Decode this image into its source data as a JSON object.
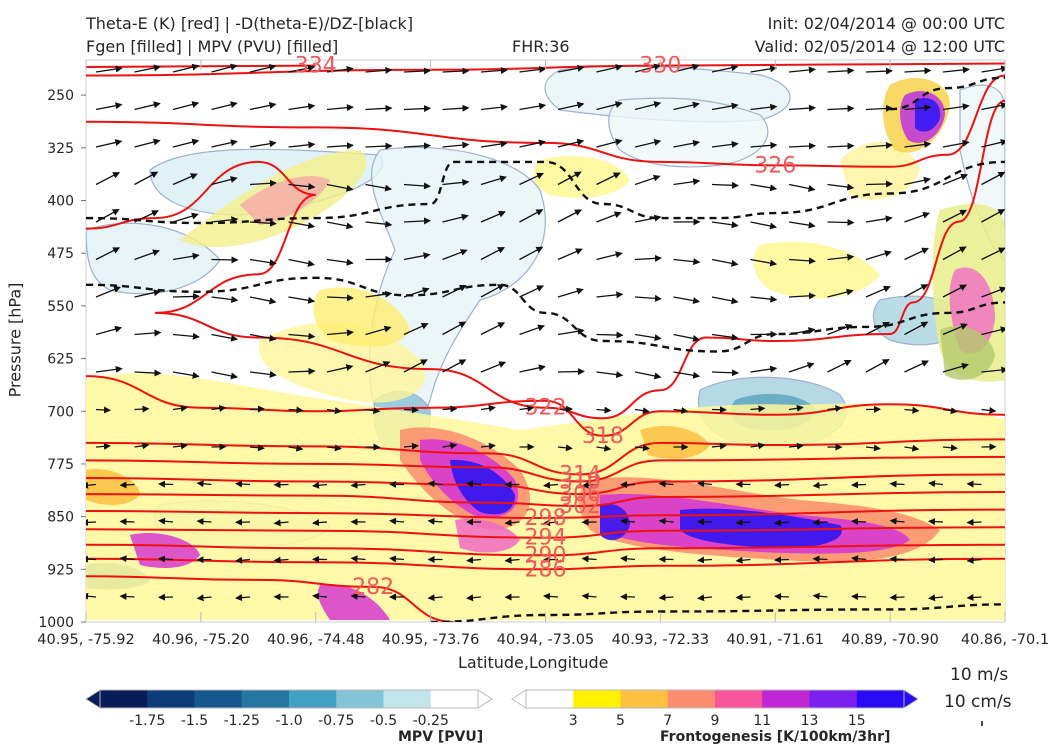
{
  "header": {
    "title_line1": "Theta-E (K) [red] | -D(theta-E)/DZ-[black]",
    "title_line2": "Fgen [filled] | MPV (PVU) [filled]",
    "fhr": "FHR:36",
    "init": "Init: 02/04/2014 @ 00:00 UTC",
    "valid": "Valid: 02/05/2014 @ 12:00 UTC"
  },
  "chart_data": {
    "type": "cross-section",
    "xlabel": "Latitude,Longitude",
    "ylabel": "Pressure [hPa]",
    "x_ticks": [
      "40.95, -75.92",
      "40.96, -75.20",
      "40.96, -74.48",
      "40.95, -73.76",
      "40.94, -73.05",
      "40.93, -72.33",
      "40.91, -71.61",
      "40.89, -70.90",
      "40.86, -70.1"
    ],
    "y_ticks": [
      250,
      325,
      400,
      475,
      550,
      625,
      700,
      775,
      850,
      925,
      1000
    ],
    "ylim": [
      1000,
      200
    ],
    "theta_e_contours": [
      {
        "value": 334,
        "label": "334",
        "points": [
          [
            0,
            210
          ],
          [
            2,
            208
          ]
        ]
      },
      {
        "value": 330,
        "label": "330",
        "points": [
          [
            0,
            222
          ],
          [
            3,
            214
          ],
          [
            5,
            208
          ],
          [
            8,
            205
          ]
        ]
      },
      {
        "value": 326,
        "label": "326",
        "points": [
          [
            0,
            288
          ],
          [
            2,
            296
          ],
          [
            4,
            318
          ],
          [
            5,
            345
          ],
          [
            6,
            350
          ],
          [
            7,
            352
          ],
          [
            7.5,
            335
          ],
          [
            8,
            222
          ]
        ]
      },
      {
        "value": 322,
        "label": "322",
        "points": [
          [
            0,
            440
          ],
          [
            0.6,
            425
          ],
          [
            1.5,
            345
          ],
          [
            2,
            392
          ],
          [
            1.5,
            505
          ],
          [
            0.6,
            560
          ],
          [
            1.5,
            595
          ],
          [
            3,
            640
          ],
          [
            4,
            695
          ],
          [
            4.5,
            710
          ],
          [
            5,
            670
          ],
          [
            5.4,
            595
          ],
          [
            6,
            600
          ],
          [
            7,
            590
          ],
          [
            7.2,
            545
          ],
          [
            7.6,
            430
          ],
          [
            8,
            258
          ]
        ]
      },
      {
        "value": 318,
        "label": "318",
        "points": [
          [
            0,
            650
          ],
          [
            1,
            695
          ],
          [
            2,
            700
          ],
          [
            3,
            695
          ],
          [
            4,
            685
          ],
          [
            4.5,
            735
          ],
          [
            5,
            700
          ],
          [
            6,
            705
          ],
          [
            7,
            690
          ],
          [
            8,
            705
          ]
        ]
      },
      {
        "value": 314,
        "label": "314",
        "points": [
          [
            0,
            745
          ],
          [
            2,
            750
          ],
          [
            3.5,
            760
          ],
          [
            4.3,
            790
          ],
          [
            5,
            745
          ],
          [
            6,
            748
          ],
          [
            8,
            740
          ]
        ]
      },
      {
        "value": 310,
        "label": "310",
        "points": [
          [
            0,
            770
          ],
          [
            2,
            775
          ],
          [
            3.5,
            780
          ],
          [
            4.3,
            800
          ],
          [
            5,
            770
          ],
          [
            8,
            765
          ]
        ]
      },
      {
        "value": 306,
        "label": "306",
        "points": [
          [
            0,
            795
          ],
          [
            2,
            800
          ],
          [
            3.5,
            805
          ],
          [
            4.3,
            818
          ],
          [
            5,
            800
          ],
          [
            8,
            790
          ]
        ]
      },
      {
        "value": 302,
        "label": "302",
        "points": [
          [
            0,
            818
          ],
          [
            2,
            820
          ],
          [
            3.5,
            830
          ],
          [
            4.3,
            835
          ],
          [
            5,
            822
          ],
          [
            8,
            815
          ]
        ]
      },
      {
        "value": 298,
        "label": "298",
        "points": [
          [
            0,
            842
          ],
          [
            2,
            845
          ],
          [
            4,
            852
          ],
          [
            5,
            848
          ],
          [
            8,
            840
          ]
        ]
      },
      {
        "value": 294,
        "label": "294",
        "points": [
          [
            0,
            868
          ],
          [
            2,
            870
          ],
          [
            4,
            880
          ],
          [
            5,
            870
          ],
          [
            8,
            865
          ]
        ]
      },
      {
        "value": 290,
        "label": "290",
        "points": [
          [
            0,
            890
          ],
          [
            2,
            895
          ],
          [
            4,
            905
          ],
          [
            5,
            895
          ],
          [
            8,
            890
          ]
        ]
      },
      {
        "value": 286,
        "label": "286",
        "points": [
          [
            0,
            910
          ],
          [
            2,
            915
          ],
          [
            4,
            925
          ],
          [
            5,
            920
          ],
          [
            8,
            910
          ]
        ]
      },
      {
        "value": 282,
        "label": "282",
        "points": [
          [
            0,
            935
          ],
          [
            1.5,
            940
          ],
          [
            2.5,
            950
          ],
          [
            3.2,
            1000
          ]
        ]
      }
    ],
    "dthetae_dz_negative_contours": [
      {
        "points": [
          [
            0,
            425
          ],
          [
            1,
            432
          ],
          [
            2,
            425
          ],
          [
            3,
            405
          ],
          [
            3.2,
            345
          ],
          [
            4,
            345
          ],
          [
            4.5,
            405
          ],
          [
            5,
            425
          ],
          [
            5.5,
            425
          ],
          [
            6,
            418
          ],
          [
            7,
            390
          ],
          [
            8,
            345
          ]
        ]
      },
      {
        "points": [
          [
            0,
            520
          ],
          [
            1,
            530
          ],
          [
            2,
            510
          ],
          [
            2.8,
            535
          ],
          [
            3.6,
            520
          ],
          [
            4,
            560
          ],
          [
            4.5,
            600
          ],
          [
            5.5,
            615
          ],
          [
            6,
            590
          ],
          [
            6.8,
            580
          ],
          [
            7.5,
            560
          ],
          [
            8,
            545
          ]
        ]
      },
      {
        "points": [
          [
            7,
            270
          ],
          [
            7.5,
            240
          ],
          [
            8,
            225
          ]
        ]
      },
      {
        "points": [
          [
            3,
            1000
          ],
          [
            4,
            990
          ],
          [
            5,
            985
          ],
          [
            7,
            982
          ],
          [
            8,
            975
          ]
        ]
      }
    ],
    "legend_mpv": {
      "title": "MPV [PVU]",
      "ticks": [
        "-1.75",
        "-1.5",
        "-1.25",
        "-1.0",
        "-0.75",
        "-0.5",
        "-0.25"
      ],
      "colors": [
        "#081d58",
        "#0c3c78",
        "#17578f",
        "#2676a2",
        "#42a0c1",
        "#83c4d6",
        "#c2e5ec",
        "#ffffff"
      ]
    },
    "legend_fgen": {
      "title": "Frontogenesis [K/100km/3hr]",
      "ticks": [
        "3",
        "5",
        "7",
        "9",
        "11",
        "13",
        "15"
      ],
      "colors": [
        "#ffffff",
        "#fff200",
        "#fdc040",
        "#fc8c6e",
        "#f9539c",
        "#c026d3",
        "#7c20f0",
        "#2a0bf5"
      ]
    },
    "wind_key": {
      "label1": "10 m/s",
      "label2": "10 cm/s"
    }
  }
}
